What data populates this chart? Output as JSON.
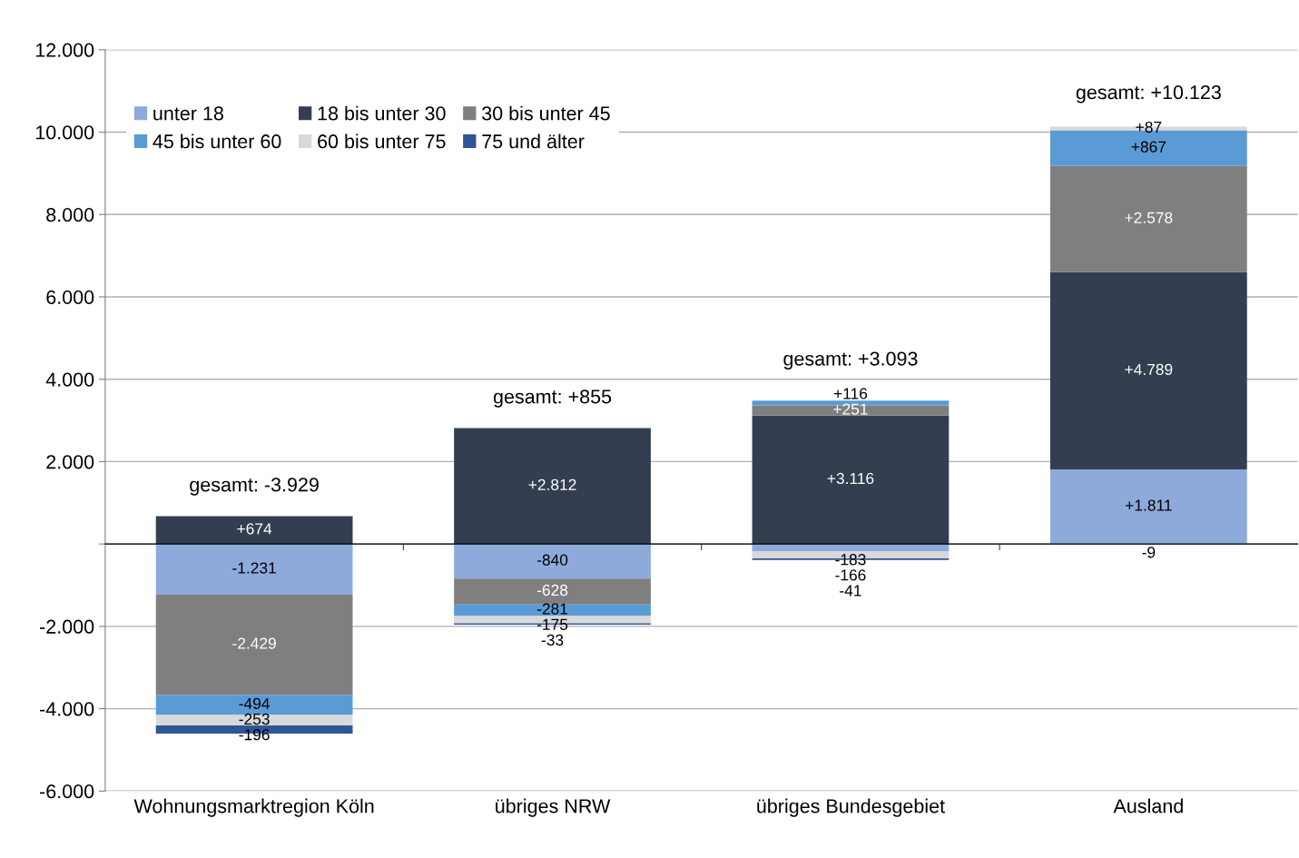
{
  "chart_data": {
    "type": "bar",
    "stacked": true,
    "categories": [
      "Wohnungsmarktregion Köln",
      "übriges NRW",
      "übriges Bundesgebiet",
      "Ausland"
    ],
    "series": [
      {
        "name": "unter 18",
        "color": "#8eaadb",
        "values": [
          -1231,
          -840,
          -183,
          1811
        ],
        "value_labels": [
          "-1.231",
          "-840",
          "-183",
          "+1.811"
        ]
      },
      {
        "name": "18 bis unter 30",
        "color": "#333f50",
        "values": [
          674,
          2812,
          3116,
          4789
        ],
        "value_labels": [
          "+674",
          "+2.812",
          "+3.116",
          "+4.789"
        ]
      },
      {
        "name": "30 bis unter 45",
        "color": "#7f7f7f",
        "values": [
          -2429,
          -628,
          251,
          2578
        ],
        "value_labels": [
          "-2.429",
          "-628",
          "+251",
          "+2.578"
        ]
      },
      {
        "name": "45 bis unter 60",
        "color": "#5b9bd5",
        "values": [
          -494,
          -281,
          116,
          867
        ],
        "value_labels": [
          "-494",
          "-281",
          "+116",
          "+867"
        ]
      },
      {
        "name": "60 bis unter 75",
        "color": "#d9d9d9",
        "values": [
          -253,
          -175,
          -166,
          87
        ],
        "value_labels": [
          "-253",
          "-175",
          "-166",
          "+87"
        ]
      },
      {
        "name": "75 und älter",
        "color": "#2f5597",
        "values": [
          -196,
          -33,
          -41,
          -9
        ],
        "value_labels": [
          "-196",
          "-33",
          "-41",
          "-9"
        ]
      }
    ],
    "totals": [
      "gesamt: -3.929",
      "gesamt: +855",
      "gesamt: +3.093",
      "gesamt: +10.123"
    ],
    "ylim": [
      -6000,
      12000
    ],
    "yticks": [
      {
        "value": -6000,
        "label": "-6.000"
      },
      {
        "value": -4000,
        "label": "-4.000"
      },
      {
        "value": -2000,
        "label": "-2.000"
      },
      {
        "value": 0,
        "label": null
      },
      {
        "value": 2000,
        "label": "2.000"
      },
      {
        "value": 4000,
        "label": "4.000"
      },
      {
        "value": 6000,
        "label": "6.000"
      },
      {
        "value": 8000,
        "label": "8.000"
      },
      {
        "value": 10000,
        "label": "10.000"
      },
      {
        "value": 12000,
        "label": "12.000"
      }
    ],
    "grid": "y",
    "legend": "top left"
  }
}
